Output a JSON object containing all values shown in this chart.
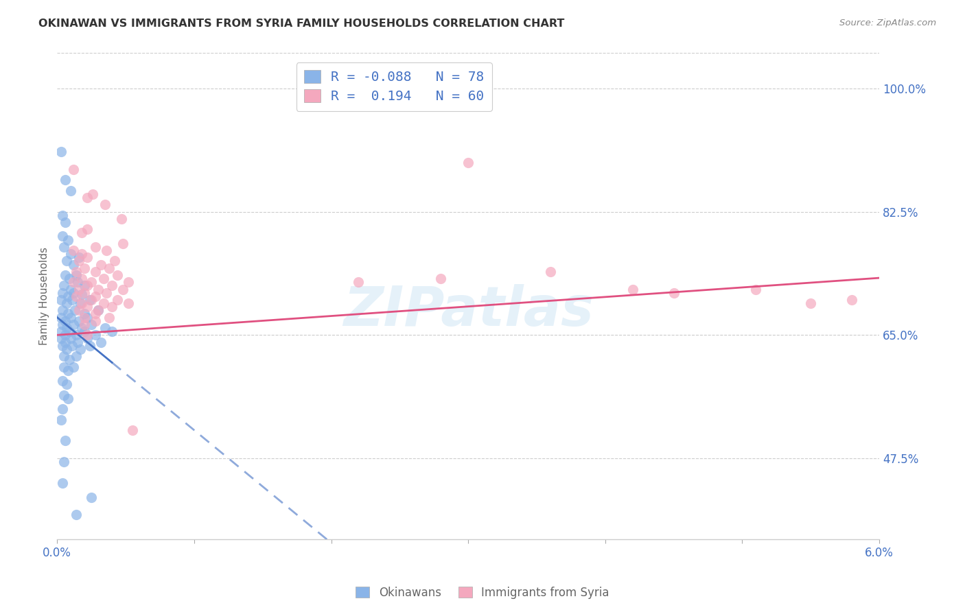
{
  "title": "OKINAWAN VS IMMIGRANTS FROM SYRIA FAMILY HOUSEHOLDS CORRELATION CHART",
  "source": "Source: ZipAtlas.com",
  "ylabel": "Family Households",
  "yticks": [
    47.5,
    65.0,
    82.5,
    100.0
  ],
  "ytick_labels": [
    "47.5%",
    "65.0%",
    "82.5%",
    "100.0%"
  ],
  "xmin": 0.0,
  "xmax": 6.0,
  "ymin": 36.0,
  "ymax": 105.0,
  "okinawan_color": "#8ab4e8",
  "syria_color": "#f4a8be",
  "okinawan_line_color": "#4472c4",
  "syria_line_color": "#e05080",
  "watermark": "ZIPatlas",
  "background_color": "#ffffff",
  "grid_color": "#cccccc",
  "okinawan_points": [
    [
      0.03,
      91.0
    ],
    [
      0.06,
      87.0
    ],
    [
      0.1,
      85.5
    ],
    [
      0.04,
      82.0
    ],
    [
      0.06,
      81.0
    ],
    [
      0.04,
      79.0
    ],
    [
      0.08,
      78.5
    ],
    [
      0.05,
      77.5
    ],
    [
      0.1,
      76.5
    ],
    [
      0.07,
      75.5
    ],
    [
      0.12,
      75.0
    ],
    [
      0.16,
      76.0
    ],
    [
      0.06,
      73.5
    ],
    [
      0.09,
      73.0
    ],
    [
      0.14,
      73.5
    ],
    [
      0.05,
      72.0
    ],
    [
      0.1,
      71.5
    ],
    [
      0.15,
      72.5
    ],
    [
      0.2,
      72.0
    ],
    [
      0.04,
      71.0
    ],
    [
      0.08,
      70.5
    ],
    [
      0.12,
      71.0
    ],
    [
      0.18,
      70.8
    ],
    [
      0.03,
      70.0
    ],
    [
      0.07,
      69.5
    ],
    [
      0.11,
      70.0
    ],
    [
      0.17,
      69.5
    ],
    [
      0.24,
      70.0
    ],
    [
      0.04,
      68.5
    ],
    [
      0.08,
      68.0
    ],
    [
      0.13,
      68.5
    ],
    [
      0.2,
      68.0
    ],
    [
      0.3,
      68.5
    ],
    [
      0.03,
      67.5
    ],
    [
      0.06,
      67.0
    ],
    [
      0.1,
      67.5
    ],
    [
      0.16,
      67.0
    ],
    [
      0.22,
      67.5
    ],
    [
      0.04,
      66.5
    ],
    [
      0.07,
      66.0
    ],
    [
      0.12,
      66.5
    ],
    [
      0.18,
      66.0
    ],
    [
      0.25,
      66.5
    ],
    [
      0.35,
      66.0
    ],
    [
      0.03,
      65.5
    ],
    [
      0.06,
      65.0
    ],
    [
      0.09,
      65.5
    ],
    [
      0.14,
      65.0
    ],
    [
      0.2,
      65.5
    ],
    [
      0.28,
      65.0
    ],
    [
      0.4,
      65.5
    ],
    [
      0.03,
      64.5
    ],
    [
      0.06,
      64.0
    ],
    [
      0.1,
      64.5
    ],
    [
      0.15,
      64.0
    ],
    [
      0.22,
      64.5
    ],
    [
      0.32,
      64.0
    ],
    [
      0.04,
      63.5
    ],
    [
      0.07,
      63.0
    ],
    [
      0.11,
      63.5
    ],
    [
      0.17,
      63.0
    ],
    [
      0.24,
      63.5
    ],
    [
      0.05,
      62.0
    ],
    [
      0.09,
      61.5
    ],
    [
      0.14,
      62.0
    ],
    [
      0.05,
      60.5
    ],
    [
      0.08,
      60.0
    ],
    [
      0.12,
      60.5
    ],
    [
      0.04,
      58.5
    ],
    [
      0.07,
      58.0
    ],
    [
      0.05,
      56.5
    ],
    [
      0.08,
      56.0
    ],
    [
      0.04,
      54.5
    ],
    [
      0.03,
      53.0
    ],
    [
      0.06,
      50.0
    ],
    [
      0.05,
      47.0
    ],
    [
      0.04,
      44.0
    ],
    [
      0.25,
      42.0
    ],
    [
      0.14,
      39.5
    ]
  ],
  "syria_points": [
    [
      0.12,
      88.5
    ],
    [
      0.22,
      84.5
    ],
    [
      0.26,
      85.0
    ],
    [
      0.35,
      83.5
    ],
    [
      0.47,
      81.5
    ],
    [
      0.18,
      79.5
    ],
    [
      0.22,
      80.0
    ],
    [
      0.12,
      77.0
    ],
    [
      0.18,
      76.5
    ],
    [
      0.28,
      77.5
    ],
    [
      0.36,
      77.0
    ],
    [
      0.48,
      78.0
    ],
    [
      0.16,
      75.5
    ],
    [
      0.22,
      76.0
    ],
    [
      0.32,
      75.0
    ],
    [
      0.42,
      75.5
    ],
    [
      0.14,
      74.0
    ],
    [
      0.2,
      74.5
    ],
    [
      0.28,
      74.0
    ],
    [
      0.38,
      74.5
    ],
    [
      0.12,
      72.5
    ],
    [
      0.18,
      73.0
    ],
    [
      0.25,
      72.5
    ],
    [
      0.34,
      73.0
    ],
    [
      0.44,
      73.5
    ],
    [
      0.16,
      71.5
    ],
    [
      0.22,
      72.0
    ],
    [
      0.3,
      71.5
    ],
    [
      0.4,
      72.0
    ],
    [
      0.52,
      72.5
    ],
    [
      0.14,
      70.5
    ],
    [
      0.2,
      71.0
    ],
    [
      0.28,
      70.5
    ],
    [
      0.36,
      71.0
    ],
    [
      0.48,
      71.5
    ],
    [
      0.18,
      69.5
    ],
    [
      0.25,
      70.0
    ],
    [
      0.34,
      69.5
    ],
    [
      0.44,
      70.0
    ],
    [
      0.16,
      68.5
    ],
    [
      0.22,
      69.0
    ],
    [
      0.3,
      68.5
    ],
    [
      0.4,
      69.0
    ],
    [
      0.52,
      69.5
    ],
    [
      0.2,
      67.5
    ],
    [
      0.28,
      68.0
    ],
    [
      0.38,
      67.5
    ],
    [
      0.2,
      66.5
    ],
    [
      0.28,
      67.0
    ],
    [
      0.22,
      65.0
    ],
    [
      3.0,
      89.5
    ],
    [
      4.2,
      71.5
    ],
    [
      4.5,
      71.0
    ],
    [
      5.1,
      71.5
    ],
    [
      5.5,
      69.5
    ],
    [
      5.8,
      70.0
    ],
    [
      2.2,
      72.5
    ],
    [
      2.8,
      73.0
    ],
    [
      3.6,
      74.0
    ],
    [
      0.55,
      51.5
    ]
  ]
}
